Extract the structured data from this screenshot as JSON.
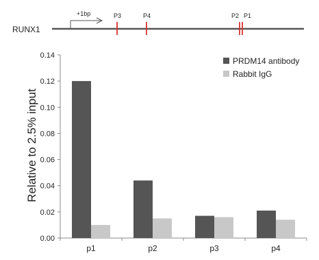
{
  "gene_map": {
    "gene_label": "RUNX1",
    "tss_label": "+1bp",
    "sites": [
      {
        "label": "P3"
      },
      {
        "label": "P4"
      },
      {
        "label": "P2"
      },
      {
        "label": "P1"
      }
    ],
    "line_color": "#555555",
    "site_color": "#d7332c"
  },
  "chart_data": {
    "type": "bar",
    "title": "",
    "xlabel": "",
    "ylabel": "Relative to 2.5% input",
    "categories": [
      "p1",
      "p2",
      "p3",
      "p4"
    ],
    "ylim": [
      0,
      0.14
    ],
    "yticks": [
      "0.00",
      "0.02",
      "0.04",
      "0.06",
      "0.08",
      "0.10",
      "0.12",
      "0.14"
    ],
    "grid": false,
    "legend_position": "top-right",
    "series": [
      {
        "name": "PRDM14 antibody",
        "color": "#555555",
        "values": [
          0.12,
          0.044,
          0.017,
          0.021
        ]
      },
      {
        "name": "Rabbit IgG",
        "color": "#c8c8c8",
        "values": [
          0.01,
          0.015,
          0.016,
          0.014
        ]
      }
    ]
  }
}
